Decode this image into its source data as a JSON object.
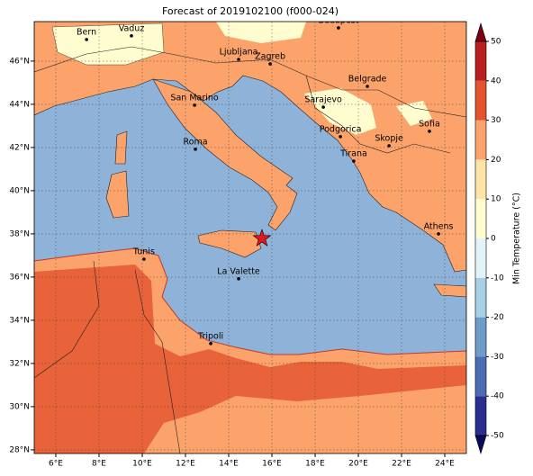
{
  "chart_data": {
    "type": "map",
    "title": "Forecast of 2019102100 (f000-024)",
    "xlim": [
      5,
      25
    ],
    "ylim": [
      27.83,
      47.83
    ],
    "xticks": [
      {
        "value": 6,
        "label": "6°E"
      },
      {
        "value": 8,
        "label": "8°E"
      },
      {
        "value": 10,
        "label": "10°E"
      },
      {
        "value": 12,
        "label": "12°E"
      },
      {
        "value": 14,
        "label": "14°E"
      },
      {
        "value": 16,
        "label": "16°E"
      },
      {
        "value": 18,
        "label": "18°E"
      },
      {
        "value": 20,
        "label": "20°E"
      },
      {
        "value": 22,
        "label": "22°E"
      },
      {
        "value": 24,
        "label": "24°E"
      }
    ],
    "yticks": [
      {
        "value": 28,
        "label": "28°N"
      },
      {
        "value": 30,
        "label": "30°N"
      },
      {
        "value": 32,
        "label": "32°N"
      },
      {
        "value": 34,
        "label": "34°N"
      },
      {
        "value": 36,
        "label": "36°N"
      },
      {
        "value": 38,
        "label": "38°N"
      },
      {
        "value": 40,
        "label": "40°N"
      },
      {
        "value": 42,
        "label": "42°N"
      },
      {
        "value": 44,
        "label": "44°N"
      },
      {
        "value": 46,
        "label": "46°N"
      }
    ],
    "grid": true,
    "cities": [
      {
        "name": "Bern",
        "lon": 7.42,
        "lat": 47.0
      },
      {
        "name": "Vaduz",
        "lon": 9.5,
        "lat": 47.17
      },
      {
        "name": "Budapest",
        "lon": 19.08,
        "lat": 47.54
      },
      {
        "name": "Ljubljana",
        "lon": 14.46,
        "lat": 46.08
      },
      {
        "name": "Zagreb",
        "lon": 15.92,
        "lat": 45.87
      },
      {
        "name": "San Marino",
        "lon": 12.42,
        "lat": 43.96
      },
      {
        "name": "Belgrade",
        "lon": 20.42,
        "lat": 44.83
      },
      {
        "name": "Sarajevo",
        "lon": 18.38,
        "lat": 43.87
      },
      {
        "name": "Sofia",
        "lon": 23.29,
        "lat": 42.75
      },
      {
        "name": "Podgorica",
        "lon": 19.17,
        "lat": 42.5
      },
      {
        "name": "Skopje",
        "lon": 21.42,
        "lat": 42.08
      },
      {
        "name": "Roma",
        "lon": 12.46,
        "lat": 41.92
      },
      {
        "name": "Tirana",
        "lon": 19.79,
        "lat": 41.37
      },
      {
        "name": "Athens",
        "lon": 23.71,
        "lat": 38.0
      },
      {
        "name": "Tunis",
        "lon": 10.08,
        "lat": 36.83
      },
      {
        "name": "La Valette",
        "lon": 14.46,
        "lat": 35.92
      },
      {
        "name": "Tripoli",
        "lon": 13.17,
        "lat": 32.92
      }
    ],
    "star": {
      "lon": 15.54,
      "lat": 37.79,
      "color": "#e8141c"
    },
    "colorbar": {
      "label": "Min Temperature (°C)",
      "levels": [
        -50,
        -40,
        -30,
        -20,
        -10,
        0,
        10,
        20,
        30,
        40,
        50
      ],
      "colors": [
        "#2b2f8c",
        "#4a6cb0",
        "#6f9bc8",
        "#a7d0e4",
        "#e3f4f8",
        "#fffcd0",
        "#fee4a6",
        "#fca36c",
        "#e3542e",
        "#b81f1e"
      ],
      "under_color": "#0b0a5a",
      "over_color": "#7a0016"
    }
  }
}
